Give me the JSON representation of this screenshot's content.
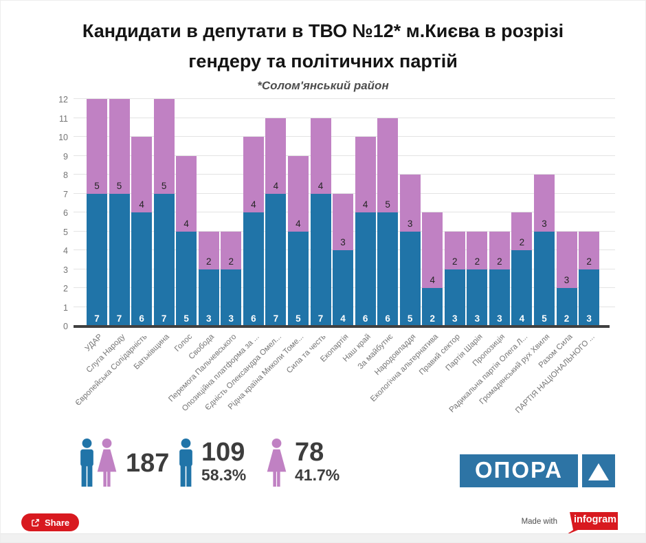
{
  "header": {
    "title_line1": "Кандидати в депутати в ТВО №12* м.Києва в розрізі",
    "title_line2": "гендеру та політичних партій",
    "subtitle": "*Солом'янський район"
  },
  "chart_data": {
    "type": "bar",
    "stacked": true,
    "title": "Кандидати в депутати в ТВО №12* м.Києва в розрізі гендеру та політичних партій",
    "subtitle": "*Солом'янський район",
    "categories": [
      "УДАР",
      "Слуга Народу",
      "Європейська Солідарність",
      "Батьківщина",
      "Голос",
      "Свобода",
      "Перемога Пальчевського",
      "Опозиційна платформа за ...",
      "Єдність Олександра Омел...",
      "Рідна країна Миколи Томе...",
      "Сила та честь",
      "Екопартія",
      "Наш край",
      "За майбутнє",
      "Народовладдя",
      "Екологічна альтернатива",
      "Правий сектор",
      "Партія Шарія",
      "Пропозиція",
      "Радикальна партія Олега Л...",
      "Громадянський рух Хвиля",
      "Разом Сила",
      "ПАРТІЯ НАЦІОНАЛЬНОГО ..."
    ],
    "series": [
      {
        "name": "male",
        "color": "#2074a8",
        "values": [
          7,
          7,
          6,
          7,
          5,
          3,
          3,
          6,
          7,
          5,
          7,
          4,
          6,
          6,
          5,
          2,
          3,
          3,
          3,
          4,
          5,
          2,
          3
        ]
      },
      {
        "name": "female",
        "color": "#c081c3",
        "values": [
          5,
          5,
          4,
          5,
          4,
          2,
          2,
          4,
          4,
          4,
          4,
          3,
          4,
          5,
          3,
          4,
          2,
          2,
          2,
          2,
          3,
          3,
          2
        ]
      }
    ],
    "ylim": [
      0,
      12
    ],
    "yticks": [
      "0",
      "1",
      "2",
      "3",
      "4",
      "5",
      "6",
      "7",
      "8",
      "9",
      "10",
      "11",
      "12"
    ],
    "grid": true,
    "legend_position": "none",
    "xlabel": "",
    "ylabel": ""
  },
  "stats": {
    "total": {
      "value": "187"
    },
    "male": {
      "value": "109",
      "percent": "58.3%"
    },
    "female": {
      "value": "78",
      "percent": "41.7%"
    }
  },
  "logo": {
    "text": "ОПОРА"
  },
  "footer": {
    "share_label": "Share",
    "made_with": "Made with",
    "infogram": "infogram"
  },
  "colors": {
    "male_blue": "#2074a8",
    "female_pink": "#c081c3",
    "accent_red": "#d8191f",
    "logo_blue": "#2d74a5"
  }
}
